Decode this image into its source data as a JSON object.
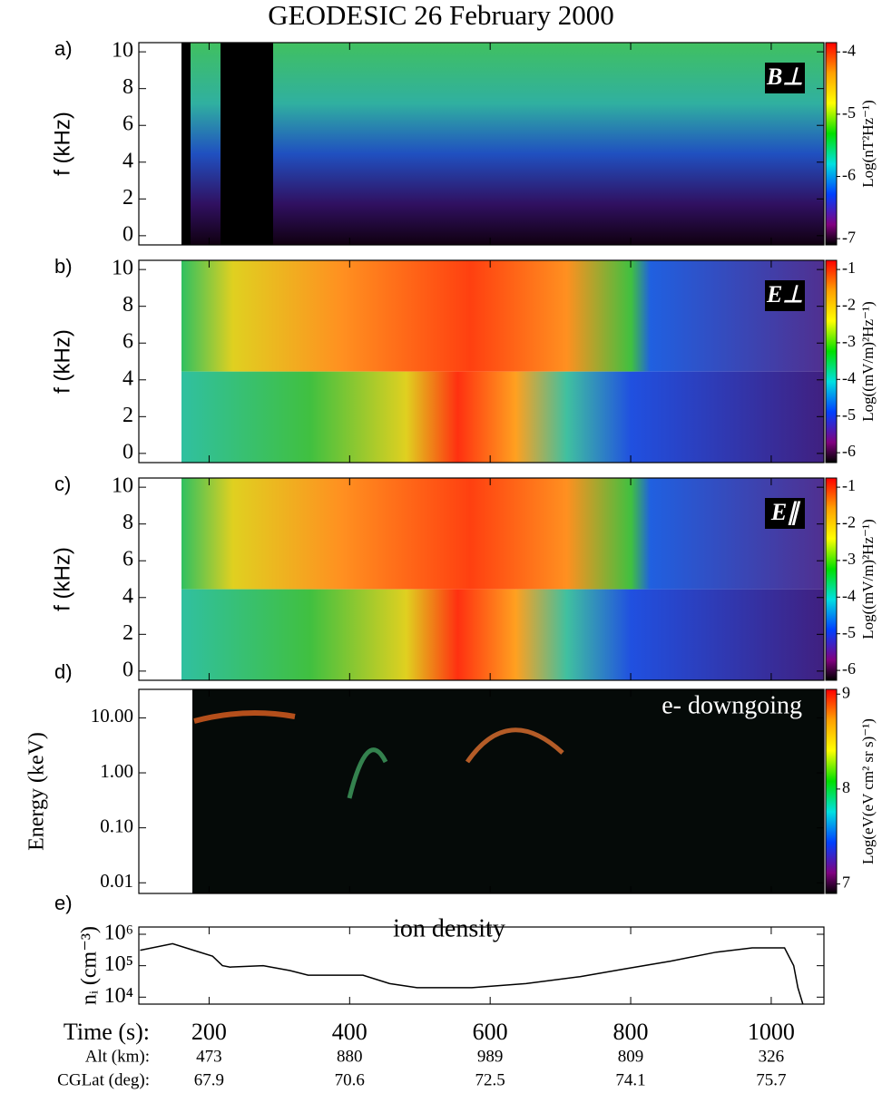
{
  "title": "GEODESIC   26 February 2000",
  "chart_data": [
    {
      "type": "spectrogram",
      "panel_label": "a)",
      "ylabel": "f (kHz)",
      "annotation": "B⊥",
      "ylim": [
        -0.5,
        10.5
      ],
      "yticks": [
        0,
        2,
        4,
        6,
        8,
        10
      ],
      "colorbar_label": "Log(nT²Hz⁻¹)",
      "clim": [
        -7.1,
        -3.85
      ],
      "cticks": [
        -4,
        -5,
        -6,
        -7
      ]
    },
    {
      "type": "spectrogram",
      "panel_label": "b)",
      "ylabel": "f (kHz)",
      "annotation": "E⊥",
      "ylim": [
        -0.5,
        10.5
      ],
      "yticks": [
        0,
        2,
        4,
        6,
        8,
        10
      ],
      "colorbar_label": "Log((mV/m)²Hz⁻¹)",
      "clim": [
        -6.27,
        -0.75
      ],
      "cticks": [
        -1,
        -2,
        -3,
        -4,
        -5,
        -6
      ]
    },
    {
      "type": "spectrogram",
      "panel_label": "c)",
      "ylabel": "f (kHz)",
      "annotation": "E∥",
      "ylim": [
        -0.5,
        10.5
      ],
      "yticks": [
        0,
        2,
        4,
        6,
        8,
        10
      ],
      "colorbar_label": "Log((mV/m)²Hz⁻¹)",
      "clim": [
        -6.27,
        -0.75
      ],
      "cticks": [
        -1,
        -2,
        -3,
        -4,
        -5,
        -6
      ]
    },
    {
      "type": "spectrogram",
      "panel_label": "d)",
      "ylabel": "Energy (keV)",
      "annotation": "e- downgoing",
      "log_y": true,
      "ylim": [
        0.0064,
        33
      ],
      "yticks": [
        {
          "value": 10,
          "label": "10.00"
        },
        {
          "value": 1,
          "label": "1.00"
        },
        {
          "value": 0.1,
          "label": "0.10"
        },
        {
          "value": 0.01,
          "label": "0.01"
        }
      ],
      "colorbar_label": "Log(eV(eV cm² sr s)⁻¹)",
      "clim": [
        6.9,
        9.05
      ],
      "cticks": [
        7,
        8,
        9
      ]
    },
    {
      "type": "line",
      "panel_label": "e)",
      "ylabel": "nᵢ (cm⁻³)",
      "annotation": "ion density",
      "log_y": true,
      "ylim": [
        6000,
        1700000
      ],
      "yticks": [
        {
          "value": 1000000,
          "label": "10⁶"
        },
        {
          "value": 100000,
          "label": "10⁵"
        },
        {
          "value": 10000,
          "label": "10⁴"
        }
      ],
      "xlim": [
        100,
        1075
      ],
      "xlabel": "Time (s):",
      "xticks": [
        200,
        400,
        600,
        800,
        1000
      ],
      "alt_label": "Alt (km):",
      "alt": [
        473,
        880,
        989,
        809,
        326
      ],
      "cglat_label": "CGLat (deg):",
      "cglat": [
        67.9,
        70.6,
        72.5,
        74.1,
        75.7
      ],
      "color": "#000000",
      "x": [
        102,
        148,
        180,
        205,
        219,
        230,
        277,
        315,
        341,
        419,
        457,
        496,
        574,
        651,
        728,
        793,
        857,
        922,
        973,
        1019,
        1032,
        1038,
        1045
      ],
      "values": [
        310000,
        500000,
        300000,
        200000,
        100000,
        90000,
        100000,
        70000,
        50000,
        50000,
        27000,
        20000,
        20000,
        27000,
        45000,
        80000,
        140000,
        270000,
        370000,
        370000,
        100000,
        20000,
        6000
      ]
    }
  ]
}
